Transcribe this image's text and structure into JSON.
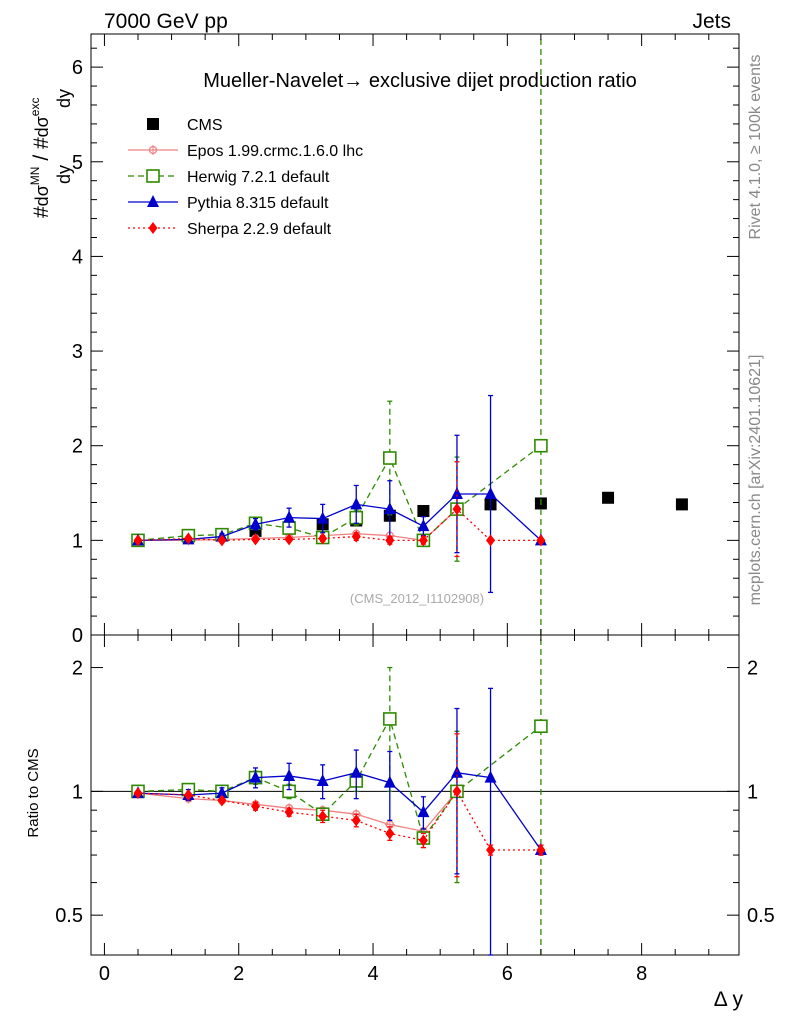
{
  "header": {
    "left": "7000 GeV pp",
    "right": "Jets"
  },
  "side_text": {
    "top": "Rivet 4.1.0, ≥ 100k events",
    "bottom": "mcplots.cern.ch [arXiv:2401.10621]"
  },
  "watermark": "(CMS_2012_I1102908)",
  "xlabel": "Δ y",
  "ylabel_ratio": "Ratio to CMS",
  "chart_data": [
    {
      "type": "scatter",
      "title": "Mueller-Navelet→ exclusive dijet production ratio",
      "ylabel": "#dσ^MN/dy / #dσ^exc/dy",
      "xlim": [
        -0.2,
        9.45
      ],
      "ylim": [
        0,
        6.35
      ],
      "yticks": [
        0,
        1,
        2,
        3,
        4,
        5,
        6
      ],
      "xticks": [
        0,
        2,
        4,
        6,
        8
      ],
      "legend_position": "top-left",
      "series": [
        {
          "name": "CMS",
          "color": "#000000",
          "marker": "square-filled",
          "x": [
            0.5,
            1.25,
            1.75,
            2.25,
            2.75,
            3.25,
            3.75,
            4.25,
            4.75,
            5.25,
            5.75,
            6.5,
            7.5,
            8.6
          ],
          "y": [
            1.0,
            1.04,
            1.06,
            1.1,
            1.13,
            1.17,
            1.21,
            1.26,
            1.31,
            1.33,
            1.38,
            1.39,
            1.45,
            1.38
          ]
        },
        {
          "name": "Epos 1.99.crmc.1.6.0 lhc",
          "color": "#f08080",
          "marker": "circle-cross",
          "dash": "solid",
          "x": [
            0.5,
            1.25,
            1.75,
            2.25,
            2.75,
            3.25,
            3.75,
            4.25,
            4.75,
            5.25
          ],
          "y": [
            1.0,
            1.0,
            1.01,
            1.02,
            1.03,
            1.05,
            1.07,
            1.05,
            1.0,
            1.33
          ]
        },
        {
          "name": "Herwig 7.2.1 default",
          "color": "#2e8b00",
          "marker": "square-open",
          "dash": "dashed",
          "x": [
            0.5,
            1.25,
            1.75,
            2.25,
            2.75,
            3.25,
            3.75,
            4.25,
            4.75,
            5.25,
            6.5
          ],
          "y": [
            1.0,
            1.05,
            1.06,
            1.18,
            1.13,
            1.03,
            1.24,
            1.87,
            1.0,
            1.33,
            2.0
          ],
          "err": [
            0.01,
            0.02,
            0.02,
            0.05,
            0.05,
            0.04,
            0.08,
            0.6,
            0.05,
            0.55,
            99
          ]
        },
        {
          "name": "Pythia 8.315 default",
          "color": "#0000cd",
          "marker": "triangle",
          "dash": "solid",
          "x": [
            0.5,
            1.25,
            1.75,
            2.25,
            2.75,
            3.25,
            3.75,
            4.25,
            4.75,
            5.25,
            5.75,
            6.5
          ],
          "y": [
            1.0,
            1.01,
            1.04,
            1.17,
            1.24,
            1.23,
            1.38,
            1.33,
            1.15,
            1.49,
            1.49,
            1.0
          ],
          "err": [
            0.01,
            0.03,
            0.03,
            0.06,
            0.1,
            0.15,
            0.2,
            0.3,
            0.1,
            0.62,
            1.04,
            0.02
          ]
        },
        {
          "name": "Sherpa 2.2.9 default",
          "color": "#ff0000",
          "marker": "diamond",
          "dash": "dotted",
          "x": [
            0.5,
            1.25,
            1.75,
            2.25,
            2.75,
            3.25,
            3.75,
            4.25,
            4.75,
            5.25,
            5.75,
            6.5
          ],
          "y": [
            1.0,
            1.02,
            1.0,
            1.01,
            1.01,
            1.02,
            1.04,
            1.0,
            1.0,
            1.33,
            1.0,
            1.0
          ],
          "err": [
            0.01,
            0.01,
            0.01,
            0.02,
            0.02,
            0.03,
            0.04,
            0.04,
            0.04,
            0.5,
            0.02,
            0.02
          ]
        }
      ]
    },
    {
      "type": "scatter",
      "title": "Ratio to CMS",
      "ylabel": "Ratio to CMS",
      "yscale": "log",
      "xlim": [
        -0.2,
        9.45
      ],
      "ylim": [
        0.4,
        2.4
      ],
      "yticks": [
        0.5,
        1,
        2
      ],
      "reference_line": 1,
      "series": [
        {
          "name": "Epos 1.99.crmc.1.6.0 lhc",
          "color": "#f08080",
          "dash": "solid",
          "marker": "circle-cross",
          "x": [
            0.5,
            1.25,
            1.75,
            2.25,
            2.75,
            3.25,
            3.75,
            4.25,
            4.75,
            5.25
          ],
          "y": [
            0.99,
            0.96,
            0.95,
            0.93,
            0.91,
            0.9,
            0.88,
            0.83,
            0.8,
            1.0
          ]
        },
        {
          "name": "Herwig 7.2.1 default",
          "color": "#2e8b00",
          "dash": "dashed",
          "marker": "square-open",
          "x": [
            0.5,
            1.25,
            1.75,
            2.25,
            2.75,
            3.25,
            3.75,
            4.25,
            4.75,
            5.25,
            6.5
          ],
          "y": [
            1.0,
            1.01,
            1.0,
            1.08,
            1.0,
            0.88,
            1.06,
            1.5,
            0.77,
            1.0,
            1.44
          ],
          "err": [
            0.01,
            0.02,
            0.02,
            0.04,
            0.04,
            0.03,
            0.06,
            0.5,
            0.04,
            0.4,
            99
          ]
        },
        {
          "name": "Pythia 8.315 default",
          "color": "#0000cd",
          "dash": "solid",
          "marker": "triangle",
          "x": [
            0.5,
            1.25,
            1.75,
            2.25,
            2.75,
            3.25,
            3.75,
            4.25,
            4.75,
            5.25,
            5.75,
            6.5
          ],
          "y": [
            0.99,
            0.98,
            0.99,
            1.08,
            1.09,
            1.06,
            1.11,
            1.05,
            0.89,
            1.11,
            1.08,
            0.72
          ],
          "err": [
            0.01,
            0.03,
            0.03,
            0.06,
            0.08,
            0.1,
            0.15,
            0.2,
            0.08,
            0.48,
            0.7,
            0.02
          ]
        },
        {
          "name": "Sherpa 2.2.9 default",
          "color": "#ff0000",
          "dash": "dotted",
          "marker": "diamond",
          "x": [
            0.5,
            1.25,
            1.75,
            2.25,
            2.75,
            3.25,
            3.75,
            4.25,
            4.75,
            5.25,
            5.75,
            6.5
          ],
          "y": [
            0.99,
            0.98,
            0.95,
            0.92,
            0.89,
            0.87,
            0.85,
            0.79,
            0.76,
            1.0,
            0.72,
            0.72
          ],
          "err": [
            0.01,
            0.01,
            0.01,
            0.02,
            0.02,
            0.03,
            0.03,
            0.03,
            0.03,
            0.38,
            0.02,
            0.02
          ]
        }
      ]
    }
  ]
}
